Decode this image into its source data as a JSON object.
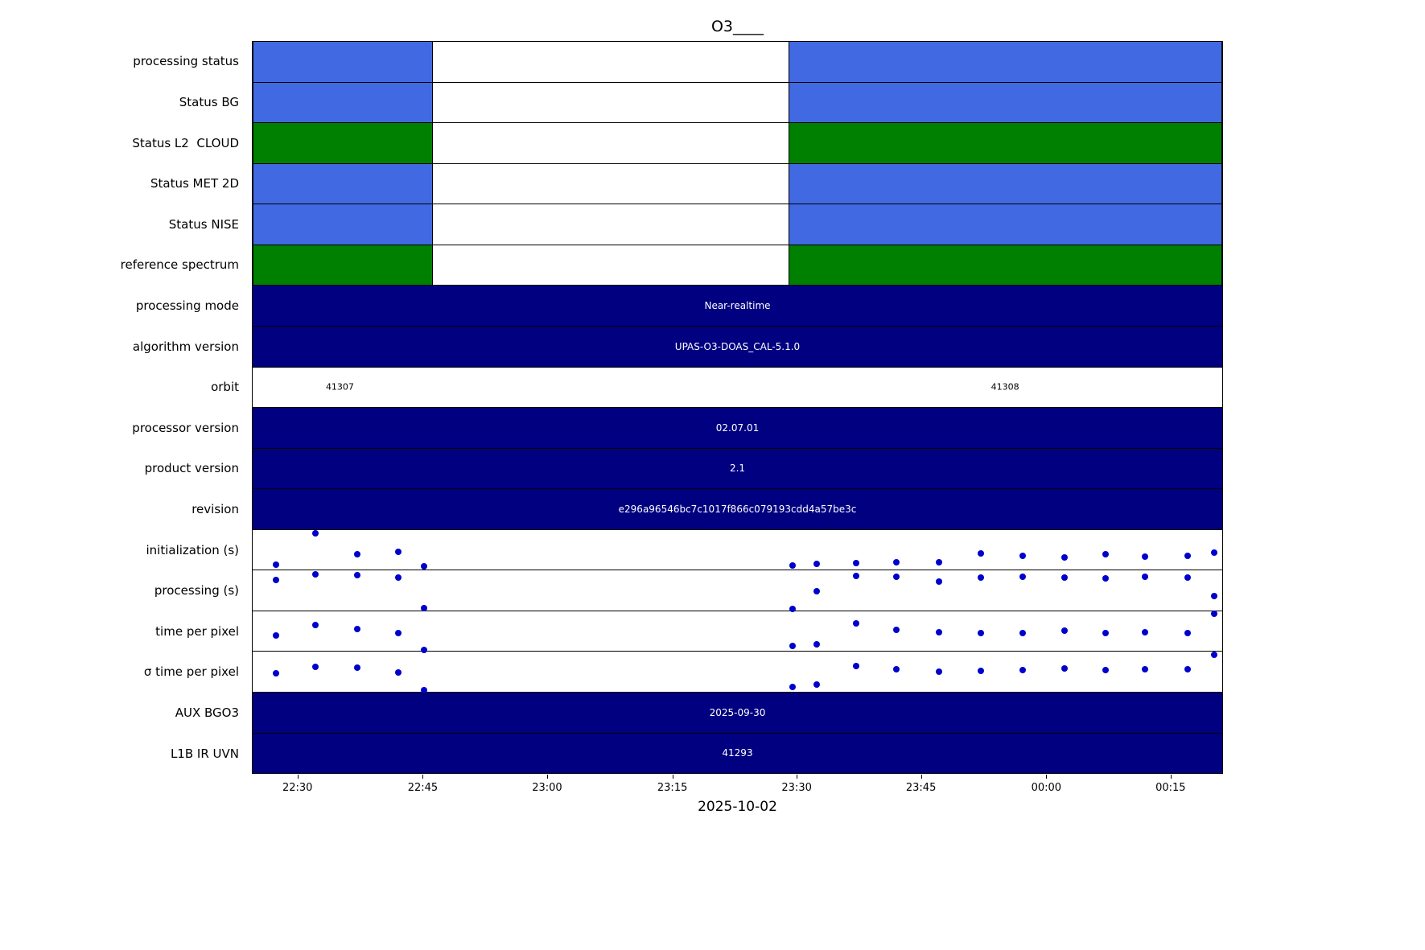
{
  "title": "O3____",
  "xlabel": "2025-10-02",
  "chart_data": {
    "type": "timeline-status",
    "title": "O3____",
    "xlabel": "2025-10-02",
    "x_ticks": [
      {
        "label": "22:30",
        "pct": 4.7
      },
      {
        "label": "22:45",
        "pct": 17.6
      },
      {
        "label": "23:00",
        "pct": 30.4
      },
      {
        "label": "23:15",
        "pct": 43.3
      },
      {
        "label": "23:30",
        "pct": 56.1
      },
      {
        "label": "23:45",
        "pct": 68.9
      },
      {
        "label": "00:00",
        "pct": 81.8
      },
      {
        "label": "00:15",
        "pct": 94.6
      }
    ],
    "time_range": {
      "start": "22:24",
      "end": "00:22"
    },
    "colors": {
      "blue": "#4169E1",
      "green": "#008000",
      "navy": "#000080",
      "dot": "#0000CD",
      "white": "#FFFFFF"
    },
    "coverage_segments": [
      {
        "start_pct": 0,
        "end_pct": 18.6,
        "start_time": "22:24",
        "end_time": "22:46"
      },
      {
        "start_pct": 55.3,
        "end_pct": 100,
        "start_time": "23:29",
        "end_time": "00:22"
      }
    ],
    "rows": [
      {
        "label": "processing status",
        "kind": "segments",
        "color": "blue"
      },
      {
        "label": "Status BG",
        "kind": "segments",
        "color": "blue"
      },
      {
        "label": "Status L2  CLOUD",
        "kind": "segments",
        "color": "green"
      },
      {
        "label": "Status MET 2D",
        "kind": "segments",
        "color": "blue"
      },
      {
        "label": "Status NISE",
        "kind": "segments",
        "color": "blue"
      },
      {
        "label": "reference spectrum",
        "kind": "segments",
        "color": "green"
      },
      {
        "label": "processing mode",
        "kind": "full-text",
        "color": "navy",
        "text": "Near-realtime"
      },
      {
        "label": "algorithm version",
        "kind": "full-text",
        "color": "navy",
        "text": "UPAS-O3-DOAS_CAL-5.1.0"
      },
      {
        "label": "orbit",
        "kind": "labels",
        "texts": [
          {
            "text": "41307",
            "pct": 9.0
          },
          {
            "text": "41308",
            "pct": 77.6
          }
        ]
      },
      {
        "label": "processor version",
        "kind": "full-text",
        "color": "navy",
        "text": "02.07.01"
      },
      {
        "label": "product version",
        "kind": "full-text",
        "color": "navy",
        "text": "2.1"
      },
      {
        "label": "revision",
        "kind": "full-text",
        "color": "navy",
        "text": "e296a96546bc7c1017f866c079193cdd4a57be3c"
      },
      {
        "label": "initialization (s)",
        "kind": "scatter",
        "points": [
          [
            2.4,
            88
          ],
          [
            6.5,
            8
          ],
          [
            10.8,
            62
          ],
          [
            15.0,
            54
          ],
          [
            17.7,
            92
          ],
          [
            55.7,
            90
          ],
          [
            58.2,
            86
          ],
          [
            62.2,
            84
          ],
          [
            66.4,
            82
          ],
          [
            70.8,
            82
          ],
          [
            75.1,
            60
          ],
          [
            79.4,
            66
          ],
          [
            83.7,
            70
          ],
          [
            88.0,
            62
          ],
          [
            92.0,
            68
          ],
          [
            96.4,
            66
          ],
          [
            99.2,
            56
          ]
        ]
      },
      {
        "label": "processing (s)",
        "kind": "scatter",
        "points": [
          [
            2.4,
            24
          ],
          [
            6.5,
            10
          ],
          [
            10.8,
            12
          ],
          [
            15.0,
            18
          ],
          [
            17.7,
            94
          ],
          [
            55.7,
            96
          ],
          [
            58.2,
            52
          ],
          [
            62.2,
            14
          ],
          [
            66.4,
            16
          ],
          [
            70.8,
            28
          ],
          [
            75.1,
            18
          ],
          [
            79.4,
            16
          ],
          [
            83.7,
            18
          ],
          [
            88.0,
            20
          ],
          [
            92.0,
            16
          ],
          [
            96.4,
            18
          ],
          [
            99.2,
            64
          ]
        ]
      },
      {
        "label": "time per pixel",
        "kind": "scatter",
        "points": [
          [
            2.4,
            60
          ],
          [
            6.5,
            34
          ],
          [
            10.8,
            44
          ],
          [
            15.0,
            54
          ],
          [
            17.7,
            98
          ],
          [
            55.7,
            88
          ],
          [
            58.2,
            82
          ],
          [
            62.2,
            30
          ],
          [
            66.4,
            46
          ],
          [
            70.8,
            52
          ],
          [
            75.1,
            54
          ],
          [
            79.4,
            54
          ],
          [
            83.7,
            48
          ],
          [
            88.0,
            54
          ],
          [
            92.0,
            52
          ],
          [
            96.4,
            54
          ],
          [
            99.2,
            6
          ]
        ]
      },
      {
        "label": "σ time per pixel",
        "kind": "scatter",
        "points": [
          [
            2.4,
            54
          ],
          [
            6.5,
            38
          ],
          [
            10.8,
            40
          ],
          [
            15.0,
            52
          ],
          [
            17.7,
            96
          ],
          [
            55.7,
            88
          ],
          [
            58.2,
            82
          ],
          [
            62.2,
            36
          ],
          [
            66.4,
            44
          ],
          [
            70.8,
            50
          ],
          [
            75.1,
            48
          ],
          [
            79.4,
            46
          ],
          [
            83.7,
            42
          ],
          [
            88.0,
            46
          ],
          [
            92.0,
            44
          ],
          [
            96.4,
            44
          ],
          [
            99.2,
            8
          ]
        ]
      },
      {
        "label": "AUX BGO3",
        "kind": "full-text",
        "color": "navy",
        "text": "2025-09-30"
      },
      {
        "label": "L1B IR UVN",
        "kind": "full-text",
        "color": "navy",
        "text": "41293"
      }
    ]
  }
}
